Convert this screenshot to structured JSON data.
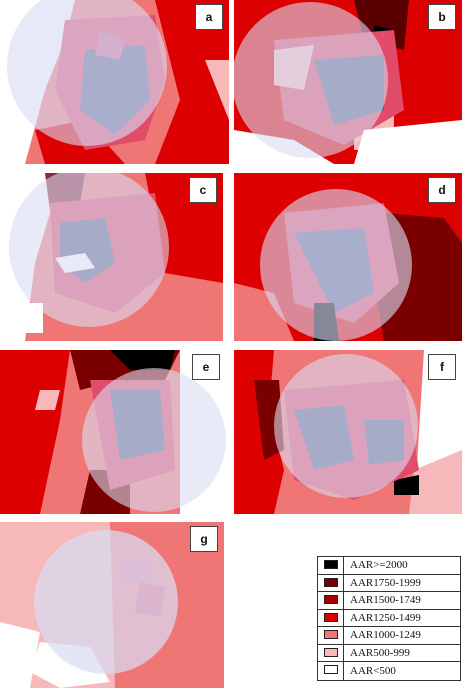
{
  "panels": [
    {
      "label": "a"
    },
    {
      "label": "b"
    },
    {
      "label": "c"
    },
    {
      "label": "d"
    },
    {
      "label": "e"
    },
    {
      "label": "f"
    },
    {
      "label": "g"
    }
  ],
  "legend": [
    {
      "label": "AAR>=2000",
      "color": "#000000"
    },
    {
      "label": "AAR1750-1999",
      "color": "#7a0000"
    },
    {
      "label": "AAR1500-1749",
      "color": "#a80000"
    },
    {
      "label": "AAR1250-1499",
      "color": "#dd0000"
    },
    {
      "label": "AAR1000-1249",
      "color": "#f07575"
    },
    {
      "label": "AAR500-999",
      "color": "#f6b8b8"
    },
    {
      "label": "AAR<500",
      "color": "#ffffff"
    }
  ],
  "colors": {
    "overlay_circle": "#d8dcf4",
    "darkest_region": "#000000",
    "inner_grey_blue": "#5a6488"
  }
}
